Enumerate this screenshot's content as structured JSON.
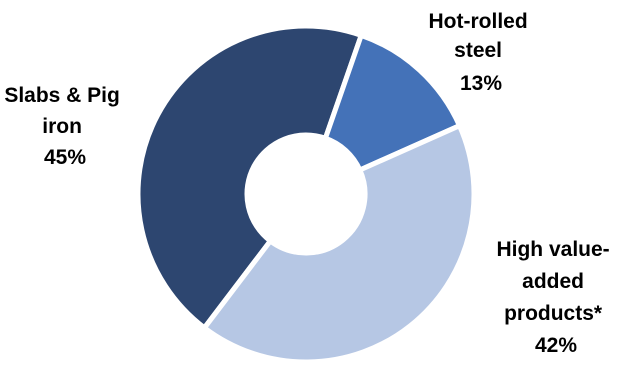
{
  "chart_data": {
    "type": "pie",
    "donut": true,
    "title": "",
    "slices": [
      {
        "key": "slabs",
        "label_lines": [
          "Slabs & Pig",
          "iron"
        ],
        "value": 45,
        "value_label": "45%",
        "color": "#2d4670"
      },
      {
        "key": "hot_rolled",
        "label_lines": [
          "Hot-rolled",
          "steel"
        ],
        "value": 13,
        "value_label": "13%",
        "color": "#4472b8"
      },
      {
        "key": "hva",
        "label_lines": [
          "High value-",
          "added",
          "products*"
        ],
        "value": 42,
        "value_label": "42%",
        "color": "#b6c7e4"
      }
    ],
    "legend": "none",
    "colors": {
      "background": "#ffffff",
      "separator": "#ffffff",
      "text": "#000000"
    }
  }
}
